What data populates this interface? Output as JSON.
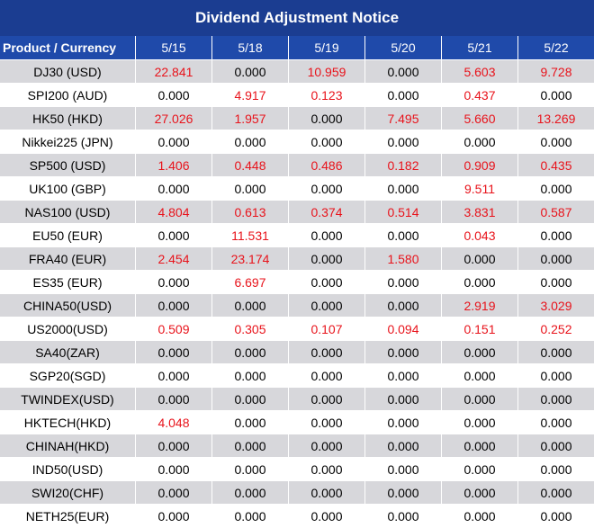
{
  "title": "Dividend Adjustment Notice",
  "header": {
    "product_label": "Product / Currency",
    "dates": [
      "5/15",
      "5/18",
      "5/19",
      "5/20",
      "5/21",
      "5/22"
    ]
  },
  "colors": {
    "title_bg": "#1b3d91",
    "header_bg": "#1f4aaa",
    "shaded_row": "#d7d7db",
    "positive_value": "#e8131b",
    "zero_value": "#000000"
  },
  "rows": [
    {
      "product": "DJ30 (USD)",
      "values": [
        "22.841",
        "0.000",
        "10.959",
        "0.000",
        "5.603",
        "9.728"
      ]
    },
    {
      "product": "SPI200 (AUD)",
      "values": [
        "0.000",
        "4.917",
        "0.123",
        "0.000",
        "0.437",
        "0.000"
      ]
    },
    {
      "product": "HK50 (HKD)",
      "values": [
        "27.026",
        "1.957",
        "0.000",
        "7.495",
        "5.660",
        "13.269"
      ]
    },
    {
      "product": "Nikkei225 (JPN)",
      "values": [
        "0.000",
        "0.000",
        "0.000",
        "0.000",
        "0.000",
        "0.000"
      ]
    },
    {
      "product": "SP500 (USD)",
      "values": [
        "1.406",
        "0.448",
        "0.486",
        "0.182",
        "0.909",
        "0.435"
      ]
    },
    {
      "product": "UK100 (GBP)",
      "values": [
        "0.000",
        "0.000",
        "0.000",
        "0.000",
        "9.511",
        "0.000"
      ]
    },
    {
      "product": "NAS100 (USD)",
      "values": [
        "4.804",
        "0.613",
        "0.374",
        "0.514",
        "3.831",
        "0.587"
      ]
    },
    {
      "product": "EU50 (EUR)",
      "values": [
        "0.000",
        "11.531",
        "0.000",
        "0.000",
        "0.043",
        "0.000"
      ]
    },
    {
      "product": "FRA40 (EUR)",
      "values": [
        "2.454",
        "23.174",
        "0.000",
        "1.580",
        "0.000",
        "0.000"
      ]
    },
    {
      "product": "ES35 (EUR)",
      "values": [
        "0.000",
        "6.697",
        "0.000",
        "0.000",
        "0.000",
        "0.000"
      ]
    },
    {
      "product": "CHINA50(USD)",
      "values": [
        "0.000",
        "0.000",
        "0.000",
        "0.000",
        "2.919",
        "3.029"
      ]
    },
    {
      "product": "US2000(USD)",
      "values": [
        "0.509",
        "0.305",
        "0.107",
        "0.094",
        "0.151",
        "0.252"
      ]
    },
    {
      "product": "SA40(ZAR)",
      "values": [
        "0.000",
        "0.000",
        "0.000",
        "0.000",
        "0.000",
        "0.000"
      ]
    },
    {
      "product": "SGP20(SGD)",
      "values": [
        "0.000",
        "0.000",
        "0.000",
        "0.000",
        "0.000",
        "0.000"
      ]
    },
    {
      "product": "TWINDEX(USD)",
      "values": [
        "0.000",
        "0.000",
        "0.000",
        "0.000",
        "0.000",
        "0.000"
      ]
    },
    {
      "product": "HKTECH(HKD)",
      "values": [
        "4.048",
        "0.000",
        "0.000",
        "0.000",
        "0.000",
        "0.000"
      ]
    },
    {
      "product": "CHINAH(HKD)",
      "values": [
        "0.000",
        "0.000",
        "0.000",
        "0.000",
        "0.000",
        "0.000"
      ]
    },
    {
      "product": "IND50(USD)",
      "values": [
        "0.000",
        "0.000",
        "0.000",
        "0.000",
        "0.000",
        "0.000"
      ]
    },
    {
      "product": "SWI20(CHF)",
      "values": [
        "0.000",
        "0.000",
        "0.000",
        "0.000",
        "0.000",
        "0.000"
      ]
    },
    {
      "product": "NETH25(EUR)",
      "values": [
        "0.000",
        "0.000",
        "0.000",
        "0.000",
        "0.000",
        "0.000"
      ]
    }
  ]
}
